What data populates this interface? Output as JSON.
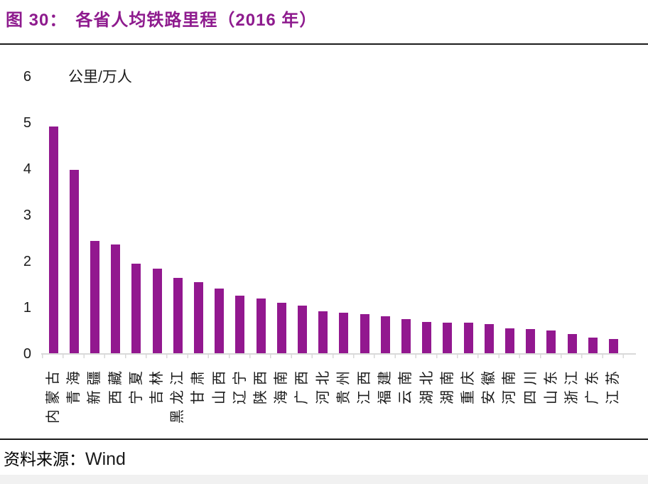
{
  "header": {
    "figure_label": "图 30：",
    "title": "各省人均铁路里程（2016 年）"
  },
  "chart_data": {
    "type": "bar",
    "title": "各省人均铁路里程（2016 年）",
    "ylabel": "公里/万人",
    "xlabel": "",
    "categories": [
      "内蒙古",
      "青海",
      "新疆",
      "西藏",
      "宁夏",
      "吉林",
      "黑龙江",
      "甘肃",
      "山西",
      "辽宁",
      "陕西",
      "海南",
      "广西",
      "河北",
      "贵州",
      "江西",
      "福建",
      "云南",
      "湖北",
      "湖南",
      "重庆",
      "安徽",
      "河南",
      "四川",
      "山东",
      "浙江",
      "广东",
      "江苏"
    ],
    "values": [
      4.92,
      3.98,
      2.45,
      2.37,
      1.95,
      1.85,
      1.64,
      1.56,
      1.42,
      1.26,
      1.2,
      1.11,
      1.05,
      0.92,
      0.9,
      0.86,
      0.81,
      0.75,
      0.7,
      0.68,
      0.67,
      0.65,
      0.56,
      0.54,
      0.51,
      0.43,
      0.35,
      0.33
    ],
    "ylim": [
      0,
      6
    ],
    "yticks": [
      0,
      1,
      2,
      3,
      4,
      5,
      6
    ],
    "grid": false,
    "legend_position": "none",
    "bar_color": "#92188F",
    "axis_color": "#D9D9D9",
    "title_color": "#8E1B8E"
  },
  "footer": {
    "source_label": "资料来源：",
    "source_value": "Wind"
  }
}
